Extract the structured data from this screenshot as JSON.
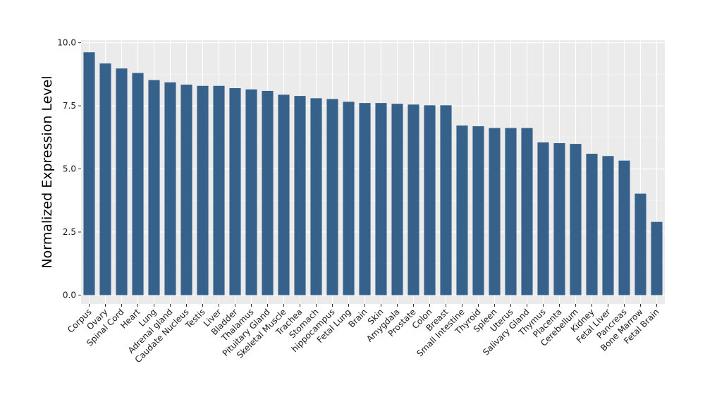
{
  "chart_data": {
    "type": "bar",
    "ylabel": "Normalized Expression Level",
    "xlabel": "",
    "ylim": [
      -0.35,
      10.1
    ],
    "yticks": [
      0.0,
      2.5,
      5.0,
      7.5,
      10.0
    ],
    "ytick_labels": [
      "0.0",
      "2.5",
      "5.0",
      "7.5",
      "10.0"
    ],
    "grid": true,
    "legend": "none",
    "colors": {
      "bar": "#35618a",
      "panel": "#ebebeb",
      "grid_major": "#ffffff",
      "grid_minor": "#f5f5f5"
    },
    "categories": [
      "Corpus",
      "Ovary",
      "Spinal Cord",
      "Heart",
      "Lung",
      "Adrenal gland",
      "Caudate Nucleus",
      "Testis",
      "Liver",
      "Bladder",
      "Thalamus",
      "Pituitary Gland",
      "Skeletal Muscle",
      "Trachea",
      "Stomach",
      "hippocampus",
      "Fetal Lung",
      "Brain",
      "Skin",
      "Amygdala",
      "Prostate",
      "Colon",
      "Breast",
      "Small Intestine",
      "Thyroid",
      "Spleen",
      "Uterus",
      "Salivary Gland",
      "Thymus",
      "Placenta",
      "Cerebellum",
      "Kidney",
      "Fetal Liver",
      "Pancreas",
      "Bone Marrow",
      "Fetal Brain"
    ],
    "values": [
      9.62,
      9.18,
      8.98,
      8.8,
      8.52,
      8.43,
      8.34,
      8.29,
      8.29,
      8.2,
      8.15,
      8.09,
      7.94,
      7.89,
      7.8,
      7.77,
      7.66,
      7.61,
      7.61,
      7.58,
      7.55,
      7.52,
      7.52,
      6.72,
      6.69,
      6.62,
      6.62,
      6.62,
      6.05,
      6.02,
      5.99,
      5.6,
      5.51,
      5.33,
      4.02,
      2.9
    ]
  }
}
